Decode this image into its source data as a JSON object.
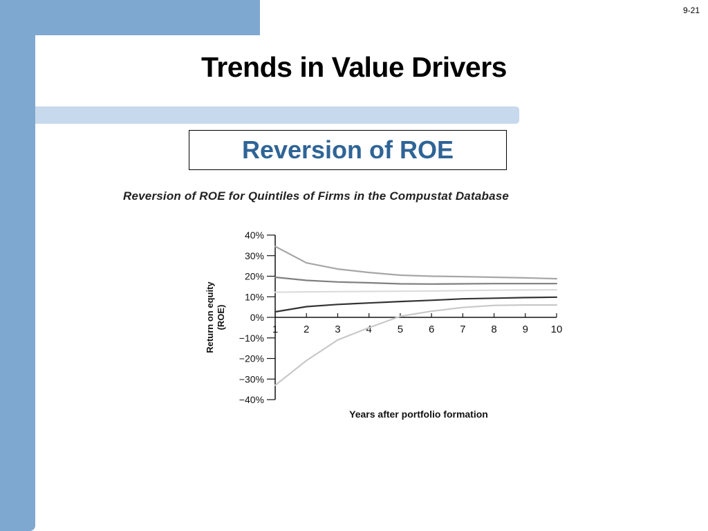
{
  "slide": {
    "number": "9-21",
    "title": "Trends in Value Drivers",
    "subtitle": "Reversion of ROE"
  },
  "theme": {
    "bar_color": "#7ea8d0",
    "rule_color": "#c7d9ec",
    "subtitle_color": "#2f6496"
  },
  "chart_data": {
    "type": "line",
    "title": "Reversion of ROE for Quintiles of Firms in the Compustat Database",
    "xlabel": "Years after portfolio formation",
    "ylabel": "Return on equity\n(ROE)",
    "x": [
      1,
      2,
      3,
      4,
      5,
      6,
      7,
      8,
      9,
      10
    ],
    "xlim": [
      1,
      10
    ],
    "ylim": [
      -40,
      40
    ],
    "y_ticks": [
      40,
      30,
      20,
      10,
      0,
      -10,
      -20,
      -30,
      -40
    ],
    "y_tick_labels": [
      "40%",
      "30%",
      "20%",
      "10%",
      "0%",
      "−10%",
      "−20%",
      "−30%",
      "−40%"
    ],
    "x_tick_labels": [
      "1",
      "2",
      "3",
      "4",
      "5",
      "6",
      "7",
      "8",
      "9",
      "10"
    ],
    "grid": false,
    "legend": "none",
    "series": [
      {
        "color": "#a6a6a6",
        "values": [
          34.5,
          26.5,
          23.5,
          21.8,
          20.5,
          20.0,
          19.8,
          19.5,
          19.2,
          18.8
        ]
      },
      {
        "color": "#7f7f7f",
        "values": [
          19.5,
          18.0,
          17.2,
          16.8,
          16.3,
          16.2,
          16.3,
          16.4,
          16.4,
          16.4
        ]
      },
      {
        "color": "#dcdcdc",
        "values": [
          12.2,
          12.4,
          12.5,
          12.6,
          12.7,
          12.8,
          13.0,
          13.2,
          13.3,
          13.4
        ]
      },
      {
        "color": "#333333",
        "values": [
          2.7,
          5.2,
          6.3,
          7.0,
          7.7,
          8.3,
          9.0,
          9.3,
          9.6,
          9.8
        ]
      },
      {
        "color": "#c8c8c8",
        "values": [
          -33.0,
          -21.0,
          -11.0,
          -5.0,
          0.5,
          3.0,
          4.8,
          5.8,
          6.0,
          6.0
        ]
      }
    ]
  }
}
